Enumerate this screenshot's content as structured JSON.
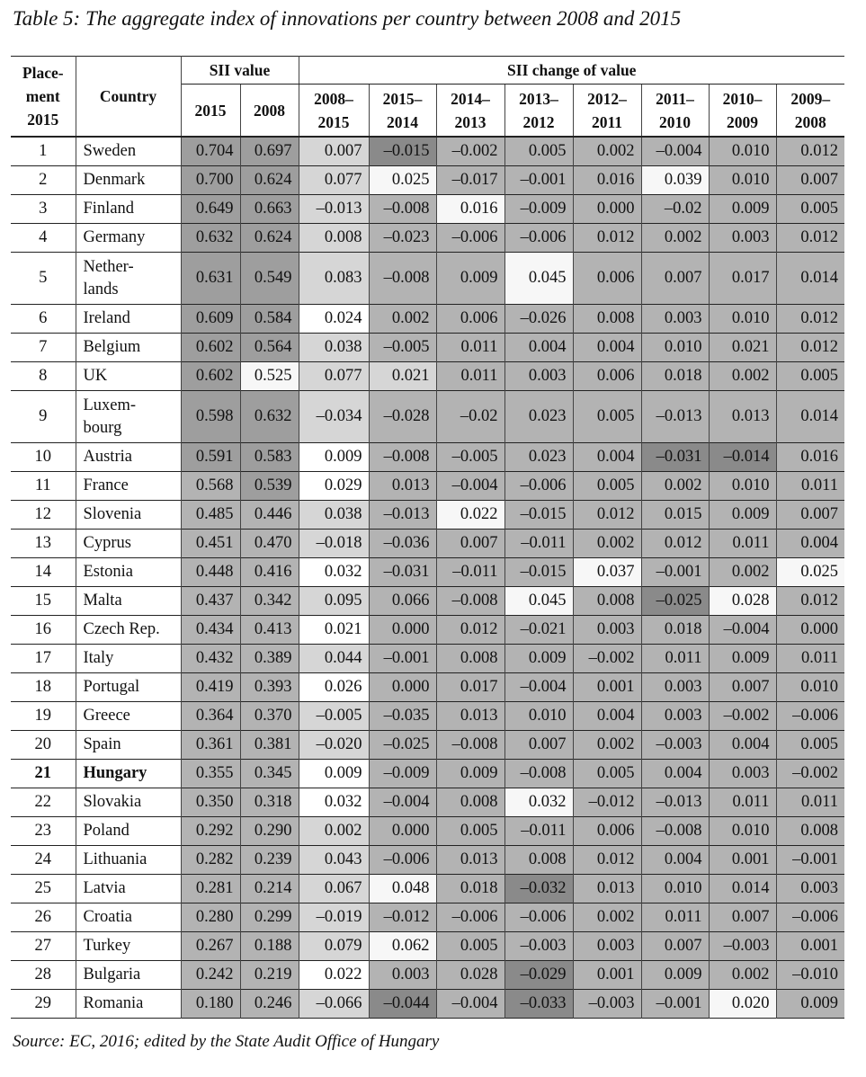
{
  "title": "Table 5: The aggregate index of innovations per country between 2008 and 2015",
  "source": "Source: EC, 2016; edited by the State Audit Office of Hungary",
  "header": {
    "placement": [
      "Place-",
      "ment",
      "2015"
    ],
    "country": "Country",
    "sii_value": "SII value",
    "sii_change": "SII change of value",
    "value_years": [
      "2015",
      "2008"
    ],
    "change_periods": [
      [
        "2008–",
        "2015"
      ],
      [
        "2015–",
        "2014"
      ],
      [
        "2014–",
        "2013"
      ],
      [
        "2013–",
        "2012"
      ],
      [
        "2012–",
        "2011"
      ],
      [
        "2011–",
        "2010"
      ],
      [
        "2010–",
        "2009"
      ],
      [
        "2009–",
        "2008"
      ]
    ]
  },
  "shade_colors": {
    "x": "#8a8a8a",
    "d": "#9e9e9e",
    "m": "#b3b3b3",
    "l": "#d6d6d6",
    "w": "#f7f7f7"
  },
  "rows": [
    {
      "place": "1",
      "country": "Sweden",
      "values": [
        "0.704",
        "0.697",
        "0.007",
        "–0.015",
        "–0.002",
        "0.005",
        "0.002",
        "–0.004",
        "0.010",
        "0.012"
      ],
      "shades": "ddlxmmmmmm"
    },
    {
      "place": "2",
      "country": "Denmark",
      "values": [
        "0.700",
        "0.624",
        "0.077",
        "0.025",
        "–0.017",
        "–0.001",
        "0.016",
        "0.039",
        "0.010",
        "0.007"
      ],
      "shades": "ddlwmmmwmm"
    },
    {
      "place": "3",
      "country": "Finland",
      "values": [
        "0.649",
        "0.663",
        "–0.013",
        "–0.008",
        "0.016",
        "–0.009",
        "0.000",
        "–0.02",
        "0.009",
        "0.005"
      ],
      "shades": "ddlmwmmmmm"
    },
    {
      "place": "4",
      "country": "Germany",
      "values": [
        "0.632",
        "0.624",
        "0.008",
        "–0.023",
        "–0.006",
        "–0.006",
        "0.012",
        "0.002",
        "0.003",
        "0.012"
      ],
      "shades": "ddlmmmmmmm"
    },
    {
      "place": "5",
      "country": "Nether-\nlands",
      "values": [
        "0.631",
        "0.549",
        "0.083",
        "–0.008",
        "0.009",
        "0.045",
        "0.006",
        "0.007",
        "0.017",
        "0.014"
      ],
      "shades": "ddlmmwmmmm",
      "tall": true
    },
    {
      "place": "6",
      "country": "Ireland",
      "values": [
        "0.609",
        "0.584",
        "0.024",
        "0.002",
        "0.006",
        "–0.026",
        "0.008",
        "0.003",
        "0.010",
        "0.012"
      ],
      "shades": "ddwmmmmmmm"
    },
    {
      "place": "7",
      "country": "Belgium",
      "values": [
        "0.602",
        "0.564",
        "0.038",
        "–0.005",
        "0.011",
        "0.004",
        "0.004",
        "0.010",
        "0.021",
        "0.012"
      ],
      "shades": "ddlmmmmmmm"
    },
    {
      "place": "8",
      "country": "UK",
      "values": [
        "0.602",
        "0.525",
        "0.077",
        "0.021",
        "0.011",
        "0.003",
        "0.006",
        "0.018",
        "0.002",
        "0.005"
      ],
      "shades": "dwllmmmmmm"
    },
    {
      "place": "9",
      "country": "Luxem-\nbourg",
      "values": [
        "0.598",
        "0.632",
        "–0.034",
        "–0.028",
        "–0.02",
        "0.023",
        "0.005",
        "–0.013",
        "0.013",
        "0.014"
      ],
      "shades": "ddlmmmmmmm",
      "tall": true
    },
    {
      "place": "10",
      "country": "Austria",
      "values": [
        "0.591",
        "0.583",
        "0.009",
        "–0.008",
        "–0.005",
        "0.023",
        "0.004",
        "–0.031",
        "–0.014",
        "0.016"
      ],
      "shades": "ddwmmmmxxm"
    },
    {
      "place": "11",
      "country": "France",
      "values": [
        "0.568",
        "0.539",
        "0.029",
        "0.013",
        "–0.004",
        "–0.006",
        "0.005",
        "0.002",
        "0.010",
        "0.011"
      ],
      "shades": "mdwmmmmmmm"
    },
    {
      "place": "12",
      "country": "Slovenia",
      "values": [
        "0.485",
        "0.446",
        "0.038",
        "–0.013",
        "0.022",
        "–0.015",
        "0.012",
        "0.015",
        "0.009",
        "0.007"
      ],
      "shades": "mmlmwmmmmm"
    },
    {
      "place": "13",
      "country": "Cyprus",
      "values": [
        "0.451",
        "0.470",
        "–0.018",
        "–0.036",
        "0.007",
        "–0.011",
        "0.002",
        "0.012",
        "0.011",
        "0.004"
      ],
      "shades": "mmlmmmmmmm"
    },
    {
      "place": "14",
      "country": "Estonia",
      "values": [
        "0.448",
        "0.416",
        "0.032",
        "–0.031",
        "–0.011",
        "–0.015",
        "0.037",
        "–0.001",
        "0.002",
        "0.025"
      ],
      "shades": "mmwmmmwmmw"
    },
    {
      "place": "15",
      "country": "Malta",
      "values": [
        "0.437",
        "0.342",
        "0.095",
        "0.066",
        "–0.008",
        "0.045",
        "0.008",
        "–0.025",
        "0.028",
        "0.012"
      ],
      "shades": "mmlmmwmxwm"
    },
    {
      "place": "16",
      "country": "Czech Rep.",
      "values": [
        "0.434",
        "0.413",
        "0.021",
        "0.000",
        "0.012",
        "–0.021",
        "0.003",
        "0.018",
        "–0.004",
        "0.000"
      ],
      "shades": "mmwmmmmmmm"
    },
    {
      "place": "17",
      "country": "Italy",
      "values": [
        "0.432",
        "0.389",
        "0.044",
        "–0.001",
        "0.008",
        "0.009",
        "–0.002",
        "0.011",
        "0.009",
        "0.011"
      ],
      "shades": "mmlmmmmmmm"
    },
    {
      "place": "18",
      "country": "Portugal",
      "values": [
        "0.419",
        "0.393",
        "0.026",
        "0.000",
        "0.017",
        "–0.004",
        "0.001",
        "0.003",
        "0.007",
        "0.010"
      ],
      "shades": "mmwmmmmmmm"
    },
    {
      "place": "19",
      "country": "Greece",
      "values": [
        "0.364",
        "0.370",
        "–0.005",
        "–0.035",
        "0.013",
        "0.010",
        "0.004",
        "0.003",
        "–0.002",
        "–0.006"
      ],
      "shades": "mmlmmmmmmm"
    },
    {
      "place": "20",
      "country": "Spain",
      "values": [
        "0.361",
        "0.381",
        "–0.020",
        "–0.025",
        "–0.008",
        "0.007",
        "0.002",
        "–0.003",
        "0.004",
        "0.005"
      ],
      "shades": "mmlmmmmmmm"
    },
    {
      "place": "21",
      "country": "Hungary",
      "values": [
        "0.355",
        "0.345",
        "0.009",
        "–0.009",
        "0.009",
        "–0.008",
        "0.005",
        "0.004",
        "0.003",
        "–0.002"
      ],
      "shades": "mmwmmmmmmm",
      "bold": true
    },
    {
      "place": "22",
      "country": "Slovakia",
      "values": [
        "0.350",
        "0.318",
        "0.032",
        "–0.004",
        "0.008",
        "0.032",
        "–0.012",
        "–0.013",
        "0.011",
        "0.011"
      ],
      "shades": "mmwmmwmmmm"
    },
    {
      "place": "23",
      "country": "Poland",
      "values": [
        "0.292",
        "0.290",
        "0.002",
        "0.000",
        "0.005",
        "–0.011",
        "0.006",
        "–0.008",
        "0.010",
        "0.008"
      ],
      "shades": "mmlmmmmmmm"
    },
    {
      "place": "24",
      "country": "Lithuania",
      "values": [
        "0.282",
        "0.239",
        "0.043",
        "–0.006",
        "0.013",
        "0.008",
        "0.012",
        "0.004",
        "0.001",
        "–0.001"
      ],
      "shades": "mmlmmmmmmm"
    },
    {
      "place": "25",
      "country": "Latvia",
      "values": [
        "0.281",
        "0.214",
        "0.067",
        "0.048",
        "0.018",
        "–0.032",
        "0.013",
        "0.010",
        "0.014",
        "0.003"
      ],
      "shades": "mmlwmxmmmm"
    },
    {
      "place": "26",
      "country": "Croatia",
      "values": [
        "0.280",
        "0.299",
        "–0.019",
        "–0.012",
        "–0.006",
        "–0.006",
        "0.002",
        "0.011",
        "0.007",
        "–0.006"
      ],
      "shades": "mmlmmmmmmm"
    },
    {
      "place": "27",
      "country": "Turkey",
      "values": [
        "0.267",
        "0.188",
        "0.079",
        "0.062",
        "0.005",
        "–0.003",
        "0.003",
        "0.007",
        "–0.003",
        "0.001"
      ],
      "shades": "mmlwmmmmmm"
    },
    {
      "place": "28",
      "country": "Bulgaria",
      "values": [
        "0.242",
        "0.219",
        "0.022",
        "0.003",
        "0.028",
        "–0.029",
        "0.001",
        "0.009",
        "0.002",
        "–0.010"
      ],
      "shades": "mmwmmxmmmm"
    },
    {
      "place": "29",
      "country": "Romania",
      "values": [
        "0.180",
        "0.246",
        "–0.066",
        "–0.044",
        "–0.004",
        "–0.033",
        "–0.003",
        "–0.001",
        "0.020",
        "0.009"
      ],
      "shades": "mmlxmxmmwm"
    }
  ]
}
